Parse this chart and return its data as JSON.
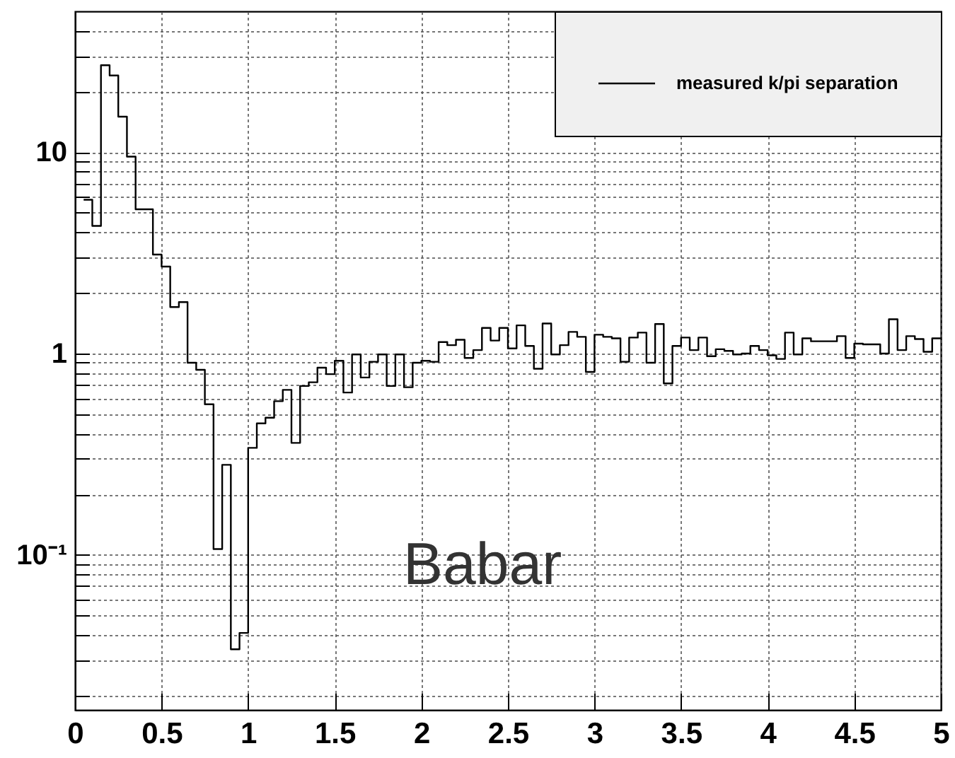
{
  "chart_data": {
    "type": "histogram",
    "bins": [
      0.05,
      0.1,
      0.15,
      0.2,
      0.25,
      0.3,
      0.35,
      0.4,
      0.45,
      0.5,
      0.55,
      0.6,
      0.65,
      0.7,
      0.75,
      0.8,
      0.85,
      0.9,
      0.95,
      1,
      1.05,
      1.1,
      1.15,
      1.2,
      1.25,
      1.3,
      1.35,
      1.4,
      1.45,
      1.5,
      1.55,
      1.6,
      1.65,
      1.7,
      1.75,
      1.8,
      1.85,
      1.9,
      1.95,
      2,
      2.05,
      2.1,
      2.15,
      2.2,
      2.25,
      2.3,
      2.35,
      2.4,
      2.45,
      2.5,
      2.55,
      2.6,
      2.65,
      2.7,
      2.75,
      2.8,
      2.85,
      2.9,
      2.95,
      3,
      3.05,
      3.1,
      3.15,
      3.2,
      3.25,
      3.3,
      3.35,
      3.4,
      3.45,
      3.5,
      3.55,
      3.6,
      3.65,
      3.7,
      3.75,
      3.8,
      3.85,
      3.9,
      3.95,
      4,
      4.05,
      4.1,
      4.15,
      4.2,
      4.25,
      4.3,
      4.35,
      4.4,
      4.45,
      4.5,
      4.55,
      4.6,
      4.65,
      4.7,
      4.75,
      4.8,
      4.85,
      4.9,
      4.95,
      5
    ],
    "series": [
      {
        "name": "measured k/pi separation",
        "color": "#000000",
        "values": [
          5.8,
          4.3,
          27,
          24,
          15,
          9.5,
          5.2,
          5.2,
          3.1,
          2.7,
          1.7,
          1.8,
          0.9,
          0.83,
          0.56,
          0.107,
          0.28,
          0.034,
          0.041,
          0.34,
          0.45,
          0.48,
          0.58,
          0.66,
          0.36,
          0.69,
          0.72,
          0.85,
          0.79,
          0.92,
          0.64,
          0.99,
          0.76,
          0.91,
          0.99,
          0.69,
          0.99,
          0.68,
          0.9,
          0.92,
          0.91,
          1.14,
          1.1,
          1.17,
          0.95,
          1.04,
          1.34,
          1.16,
          1.34,
          1.06,
          1.38,
          1.09,
          0.84,
          1.41,
          0.99,
          1.1,
          1.28,
          1.21,
          0.81,
          1.24,
          1.21,
          1.19,
          0.91,
          1.2,
          1.27,
          0.9,
          1.4,
          0.71,
          1.09,
          1.2,
          1.04,
          1.2,
          0.97,
          1.05,
          1.03,
          0.99,
          1,
          1.09,
          1.04,
          0.98,
          0.94,
          1.27,
          0.99,
          1.19,
          1.15,
          1.15,
          1.15,
          1.22,
          0.95,
          1.12,
          1.11,
          1.11,
          1,
          1.48,
          1.04,
          1.22,
          1.18,
          1.02,
          1.19
        ]
      }
    ],
    "xlim": [
      0,
      5
    ],
    "xticks": [
      0,
      0.5,
      1,
      1.5,
      2,
      2.5,
      3,
      3.5,
      4,
      4.5,
      5
    ],
    "ylim": [
      0.017,
      50
    ],
    "yticks": [
      {
        "value": 0.02,
        "label": null
      },
      {
        "value": 0.03,
        "label": null
      },
      {
        "value": 0.04,
        "label": null
      },
      {
        "value": 0.05,
        "label": null
      },
      {
        "value": 0.06,
        "label": null
      },
      {
        "value": 0.07,
        "label": null
      },
      {
        "value": 0.08,
        "label": null
      },
      {
        "value": 0.09,
        "label": null
      },
      {
        "value": 0.1,
        "label": "10⁻¹"
      },
      {
        "value": 0.2,
        "label": null
      },
      {
        "value": 0.3,
        "label": null
      },
      {
        "value": 0.4,
        "label": null
      },
      {
        "value": 0.5,
        "label": null
      },
      {
        "value": 0.6,
        "label": null
      },
      {
        "value": 0.7,
        "label": null
      },
      {
        "value": 0.8,
        "label": null
      },
      {
        "value": 0.9,
        "label": null
      },
      1,
      {
        "value": 2,
        "label": null
      },
      {
        "value": 3,
        "label": null
      },
      {
        "value": 4,
        "label": null
      },
      {
        "value": 5,
        "label": null
      },
      {
        "value": 6,
        "label": null
      },
      {
        "value": 7,
        "label": null
      },
      {
        "value": 8,
        "label": null
      },
      {
        "value": 9,
        "label": null
      },
      10,
      {
        "value": 20,
        "label": null
      },
      {
        "value": 30,
        "label": null
      },
      {
        "value": 40,
        "label": null
      }
    ],
    "log": true,
    "grid": true,
    "legend": "top right",
    "annotations": [
      "Babar"
    ]
  }
}
